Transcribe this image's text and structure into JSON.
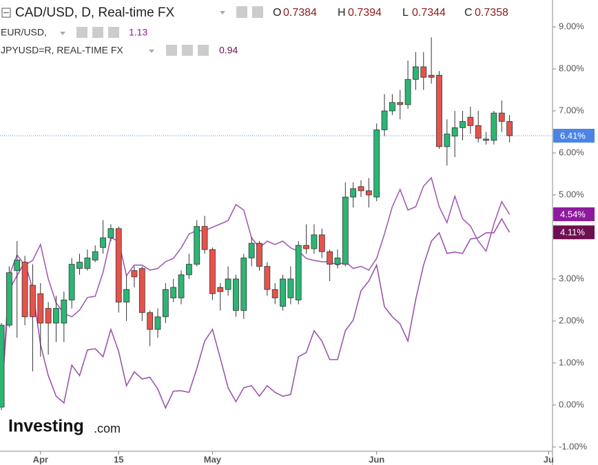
{
  "chart_data": {
    "type": "candlestick",
    "title": "CAD/USD, D, Real-time FX",
    "ohlc": [
      {
        "label": "O",
        "value": 0.7384
      },
      {
        "label": "H",
        "value": 0.7394
      },
      {
        "label": "L",
        "value": 0.7344
      },
      {
        "label": "C",
        "value": 0.7358
      }
    ],
    "watermark": "Investing",
    "watermark_suffix": ".com",
    "up_color": "#2bb673",
    "down_color": "#e5534b",
    "x": [
      0,
      1,
      2,
      3,
      4,
      5,
      6,
      7,
      8,
      9,
      10,
      11,
      12,
      13,
      14,
      15,
      16,
      17,
      18,
      19,
      20,
      21,
      22,
      23,
      24,
      25,
      26,
      27,
      28,
      29,
      30,
      31,
      32,
      33,
      34,
      35,
      36,
      37,
      38,
      39,
      40,
      41,
      42,
      43,
      44,
      45,
      46,
      47,
      48,
      49,
      50,
      51,
      52,
      53,
      54,
      55,
      56,
      57,
      58,
      59,
      60,
      61,
      62,
      63,
      64,
      65
    ],
    "open": [
      -0.05,
      1.9,
      3.2,
      3.4,
      2.85,
      2.65,
      2.3,
      1.95,
      1.95,
      2.5,
      3.25,
      3.25,
      3.45,
      3.75,
      3.98,
      4.2,
      2.45,
      3.2,
      3.25,
      2.2,
      1.8,
      2.1,
      2.55,
      2.55,
      3.1,
      3.35,
      4.25,
      3.7,
      2.8,
      2.75,
      2.25,
      2.25,
      3.5,
      3.85,
      3.3,
      2.75,
      2.35,
      2.55,
      2.5,
      3.8,
      3.72,
      4.05,
      3.65,
      3.35,
      3.35,
      4.95,
      5.2,
      5.1,
      4.95,
      6.55,
      7.0,
      7.2,
      7.15,
      7.75,
      8.05,
      7.85,
      7.85,
      6.15,
      6.4,
      6.6,
      6.85,
      6.65,
      6.33,
      6.3,
      6.95,
      6.75
    ],
    "high": [
      1.95,
      3.3,
      3.9,
      3.55,
      3.35,
      2.9,
      2.45,
      2.6,
      2.7,
      3.5,
      3.6,
      3.7,
      3.8,
      4.4,
      4.3,
      4.25,
      3.1,
      3.3,
      3.3,
      2.25,
      2.3,
      2.9,
      3.0,
      3.2,
      3.6,
      4.4,
      4.5,
      3.75,
      2.9,
      3.3,
      3.1,
      3.6,
      4.0,
      3.9,
      3.4,
      2.9,
      3.1,
      3.3,
      3.9,
      4.3,
      4.3,
      4.2,
      3.7,
      3.7,
      5.3,
      5.3,
      5.35,
      5.4,
      6.7,
      7.4,
      7.4,
      7.5,
      8.2,
      8.4,
      8.4,
      8.75,
      7.95,
      6.8,
      7.0,
      7.0,
      7.1,
      7.0,
      6.5,
      7.0,
      7.25,
      6.9
    ],
    "low": [
      -0.12,
      1.85,
      1.6,
      1.9,
      0.8,
      1.15,
      1.2,
      1.5,
      1.5,
      2.3,
      3.1,
      3.2,
      3.4,
      3.6,
      3.9,
      2.2,
      2.0,
      2.8,
      2.0,
      1.4,
      1.6,
      1.95,
      2.45,
      2.4,
      3.0,
      3.3,
      3.6,
      2.5,
      2.25,
      2.6,
      2.1,
      2.05,
      3.3,
      3.2,
      2.6,
      2.4,
      2.25,
      2.4,
      2.4,
      3.6,
      3.6,
      3.5,
      2.95,
      3.25,
      3.3,
      4.7,
      4.95,
      4.7,
      4.85,
      6.4,
      6.9,
      6.8,
      7.05,
      7.5,
      7.5,
      7.65,
      6.1,
      5.7,
      5.9,
      6.3,
      6.45,
      6.25,
      6.2,
      6.2,
      6.5,
      6.25
    ],
    "close": [
      1.9,
      3.15,
      3.45,
      2.1,
      2.1,
      1.95,
      1.95,
      2.3,
      2.5,
      3.35,
      3.4,
      3.5,
      3.65,
      3.98,
      4.2,
      2.45,
      2.75,
      3.05,
      2.2,
      1.8,
      2.1,
      2.75,
      2.8,
      3.1,
      3.35,
      4.25,
      3.7,
      2.65,
      2.7,
      3.0,
      3.0,
      3.5,
      3.85,
      3.3,
      2.75,
      2.55,
      3.0,
      3.0,
      3.8,
      3.72,
      4.05,
      3.65,
      3.35,
      3.5,
      4.95,
      5.15,
      5.1,
      5.0,
      6.55,
      7.0,
      7.2,
      7.15,
      7.75,
      8.05,
      7.8,
      7.8,
      6.15,
      6.45,
      6.6,
      6.75,
      6.65,
      6.35,
      6.3,
      6.95,
      6.75,
      6.41
    ],
    "price_line": {
      "value": 6.41,
      "label": "6.41%",
      "color": "#4c84e6"
    },
    "series": [
      {
        "name": "EUR/USD,",
        "legend_value": 1.13,
        "color": "#a45bb5",
        "end_label": {
          "value": 4.54,
          "label": "4.54%",
          "color": "#8e1a9e"
        },
        "values": [
          0.13,
          3.08,
          3.57,
          3.33,
          3.44,
          3.82,
          3.0,
          2.43,
          2.18,
          2.1,
          2.26,
          2.56,
          2.59,
          3.16,
          3.98,
          3.9,
          3.08,
          3.33,
          3.33,
          3.21,
          3.25,
          3.41,
          3.49,
          3.74,
          4.07,
          4.15,
          4.15,
          4.23,
          4.31,
          4.39,
          4.77,
          4.64,
          3.98,
          3.74,
          3.9,
          3.82,
          3.9,
          3.74,
          3.66,
          3.49,
          3.44,
          3.41,
          3.41,
          3.33,
          3.41,
          3.25,
          3.3,
          3.21,
          3.49,
          4.07,
          4.72,
          5.13,
          4.64,
          4.72,
          5.21,
          5.41,
          4.72,
          4.34,
          4.97,
          4.43,
          4.26,
          3.9,
          3.66,
          4.31,
          4.84,
          4.54
        ]
      },
      {
        "name": "JPYUSD=R, REAL-TIME FX",
        "legend_value": 0.94,
        "color": "#9a55ad",
        "end_label": {
          "value": 4.11,
          "label": "4.11%",
          "color": "#6e0f52"
        },
        "values": [
          0.13,
          2.75,
          3.08,
          3.41,
          2.75,
          1.44,
          0.7,
          0.21,
          0.05,
          0.95,
          0.7,
          1.31,
          1.34,
          1.15,
          1.8,
          1.28,
          0.46,
          0.79,
          0.62,
          0.66,
          0.38,
          -0.07,
          0.33,
          0.34,
          0.3,
          0.87,
          1.52,
          1.8,
          1.11,
          0.41,
          0.08,
          0.41,
          0.46,
          0.21,
          0.46,
          0.3,
          0.21,
          0.25,
          1.15,
          1.25,
          1.77,
          1.52,
          1.08,
          1.08,
          1.77,
          2.02,
          2.72,
          2.95,
          3.33,
          2.34,
          2.1,
          1.93,
          1.52,
          2.51,
          3.33,
          3.9,
          4.1,
          3.61,
          3.64,
          3.61,
          3.95,
          3.98,
          4.1,
          4.1,
          4.43,
          4.11
        ]
      }
    ],
    "xlim": [
      -0.18,
      70.5
    ],
    "xticks": [
      {
        "value": 5,
        "label": "Apr"
      },
      {
        "value": 15,
        "label": "15"
      },
      {
        "value": 27,
        "label": "May"
      },
      {
        "value": 48,
        "label": "Jun"
      },
      {
        "value": 70,
        "label": "Ju"
      }
    ],
    "ylim": [
      -1.1,
      9.64
    ],
    "yticks": [
      {
        "value": -1,
        "label": "-1.00%"
      },
      {
        "value": 0,
        "label": "0.00%"
      },
      {
        "value": 1,
        "label": "1.00%"
      },
      {
        "value": 2,
        "label": "2.00%"
      },
      {
        "value": 3,
        "label": "3.00%"
      },
      {
        "value": 4,
        "label": "4.00%"
      },
      {
        "value": 5,
        "label": "5.00%"
      },
      {
        "value": 6,
        "label": "6.00%"
      },
      {
        "value": 7,
        "label": "7.00%"
      },
      {
        "value": 8,
        "label": "8.00%"
      },
      {
        "value": 9,
        "label": "9.00%"
      }
    ]
  }
}
